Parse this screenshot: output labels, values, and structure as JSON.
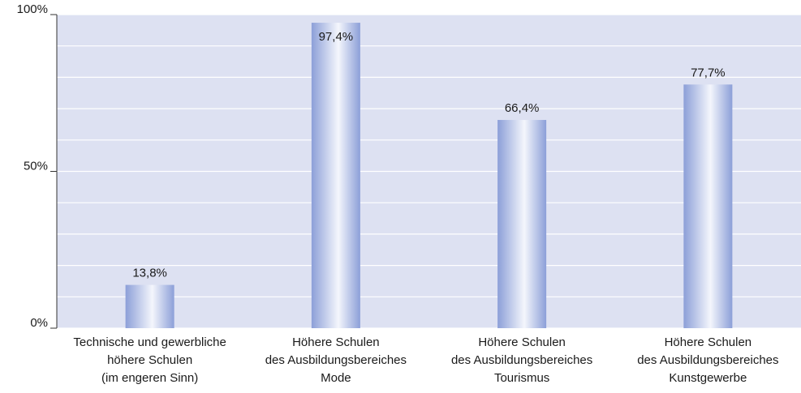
{
  "chart_data": {
    "type": "bar",
    "categories": [
      [
        "Technische und gewerbliche",
        "höhere Schulen",
        "(im engeren Sinn)"
      ],
      [
        "Höhere Schulen",
        "des Ausbildungsbereiches",
        "Mode"
      ],
      [
        "Höhere Schulen",
        "des Ausbildungsbereiches",
        "Tourismus"
      ],
      [
        "Höhere Schulen",
        "des Ausbildungsbereiches",
        "Kunstgewerbe"
      ]
    ],
    "values": [
      13.8,
      97.4,
      66.4,
      77.7
    ],
    "value_labels": [
      "13,8%",
      "97,4%",
      "66,4%",
      "77,7%"
    ],
    "color": "#8c9fd8",
    "ylim": [
      0,
      100
    ],
    "yticks": [
      {
        "value": 0,
        "label": "0%"
      },
      {
        "value": 50,
        "label": "50%"
      },
      {
        "value": 100,
        "label": "100%"
      }
    ],
    "yminor": [
      10,
      20,
      30,
      40,
      60,
      70,
      80,
      90
    ],
    "grid": true
  }
}
